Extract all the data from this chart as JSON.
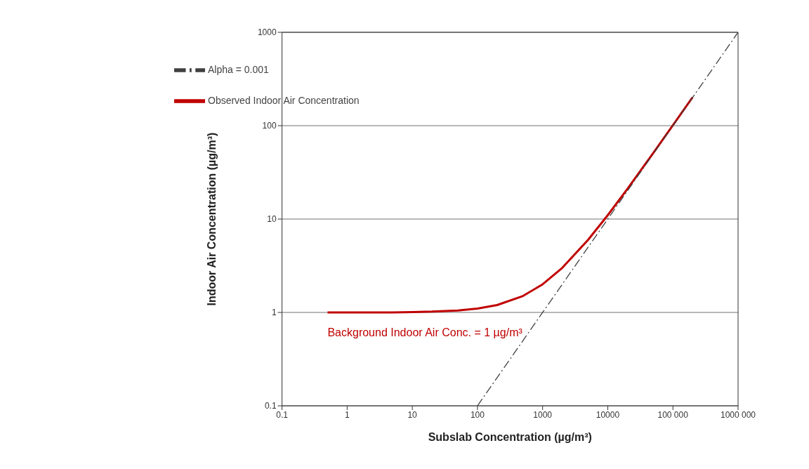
{
  "chart_data": {
    "type": "line",
    "xlabel": "Subslab Concentration (µg/m³)",
    "ylabel": "Indoor Air Concentration (µg/m³)",
    "log": "xy",
    "xlim": [
      0.1,
      1000000
    ],
    "xticks": [
      0.1,
      1,
      10,
      100,
      1000,
      10000,
      {
        "value": 100000,
        "label": "100 000"
      },
      {
        "value": 1000000,
        "label": "1000 000"
      }
    ],
    "ylim": [
      0.1,
      1000
    ],
    "yticks": [
      0.1,
      1,
      10,
      100,
      1000
    ],
    "grid": "y",
    "legend": "top left",
    "marker": "none",
    "series": [
      {
        "name": "Observed Indoor Air Concentration",
        "color": "#c00000",
        "line_style": "solid",
        "x": [
          0.5,
          1,
          2,
          5,
          10,
          20,
          50,
          100,
          200,
          500,
          1000,
          2000,
          5000,
          10000,
          20000,
          50000,
          100000,
          200000
        ],
        "values": [
          1,
          1,
          1,
          1,
          1.01,
          1.02,
          1.05,
          1.1,
          1.2,
          1.5,
          2,
          3,
          6,
          11,
          21,
          51,
          101,
          201
        ]
      },
      {
        "name": "Alpha = 0.001",
        "color": "#404040",
        "line_style": "dashed",
        "x": [
          100,
          1000000
        ],
        "values": [
          0.1,
          1000
        ]
      }
    ],
    "annotations": [
      {
        "text": "Background Indoor Air Conc. = 1 µg/m³",
        "x": 0.5,
        "y": 1
      }
    ]
  }
}
